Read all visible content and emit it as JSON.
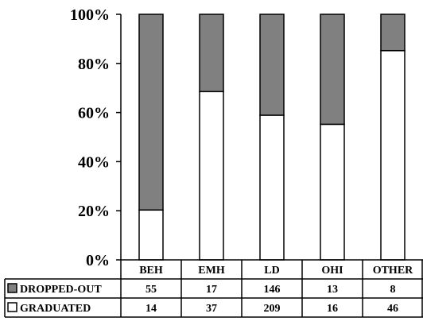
{
  "chart_data": {
    "type": "bar",
    "stacked": "percent",
    "categories": [
      "BEH",
      "EMH",
      "LD",
      "OHI",
      "OTHER"
    ],
    "series": [
      {
        "name": "GRADUATED",
        "values": [
          14,
          37,
          209,
          16,
          46
        ],
        "color": "#ffffff"
      },
      {
        "name": "DROPPED-OUT",
        "values": [
          55,
          17,
          146,
          13,
          8
        ],
        "color": "#808080"
      }
    ],
    "yticks": [
      "0%",
      "20%",
      "40%",
      "60%",
      "80%",
      "100%"
    ],
    "ylim": [
      0,
      100
    ],
    "grid": false,
    "legend": "data-table-below",
    "title": "",
    "xlabel": "",
    "ylabel": ""
  }
}
